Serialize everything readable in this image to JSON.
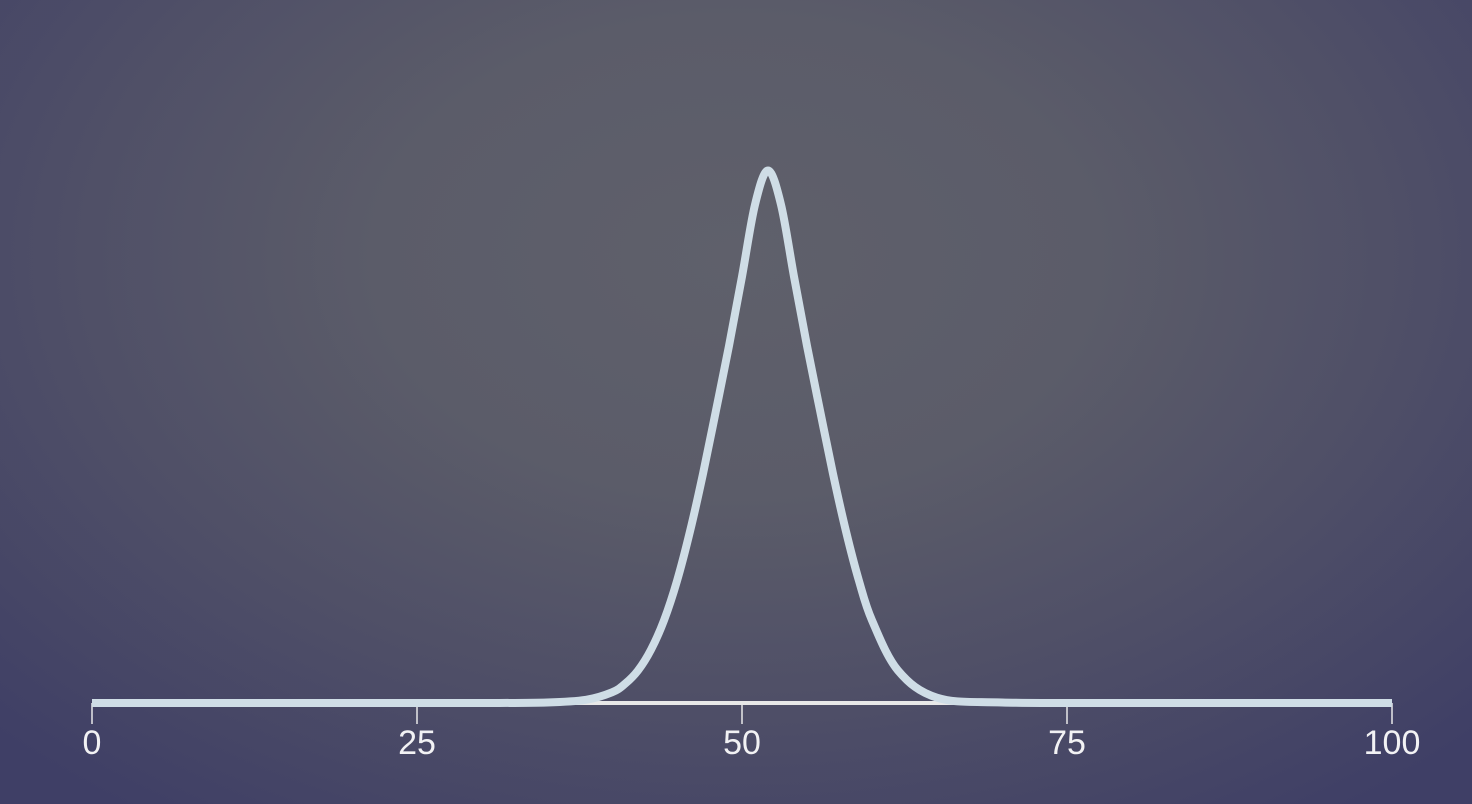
{
  "chart_data": {
    "type": "line",
    "title": "",
    "xlabel": "",
    "ylabel": "",
    "xlim": [
      0,
      100
    ],
    "ylim": [
      0,
      1
    ],
    "grid": false,
    "x_ticks": [
      0,
      25,
      50,
      75,
      100
    ],
    "x_tick_labels": [
      "0",
      "25",
      "50",
      "75",
      "100"
    ],
    "series": [
      {
        "x": [
          0,
          10,
          20,
          30,
          35,
          38,
          40,
          41,
          42,
          43,
          44,
          45,
          46,
          47,
          48,
          49,
          50,
          51,
          52,
          53,
          54,
          55,
          56,
          57,
          58,
          59,
          60,
          62,
          65,
          70,
          80,
          90,
          100
        ],
        "y": [
          0,
          0,
          0,
          0,
          0.001,
          0.006,
          0.02,
          0.036,
          0.061,
          0.1,
          0.155,
          0.229,
          0.322,
          0.43,
          0.549,
          0.67,
          0.8,
          0.935,
          0.999,
          0.935,
          0.8,
          0.67,
          0.549,
          0.43,
          0.322,
          0.229,
          0.155,
          0.061,
          0.01,
          0.001,
          0,
          0,
          0
        ]
      }
    ],
    "colors": {
      "line": "#cfdde6",
      "axis": "#e8e8e8"
    }
  }
}
